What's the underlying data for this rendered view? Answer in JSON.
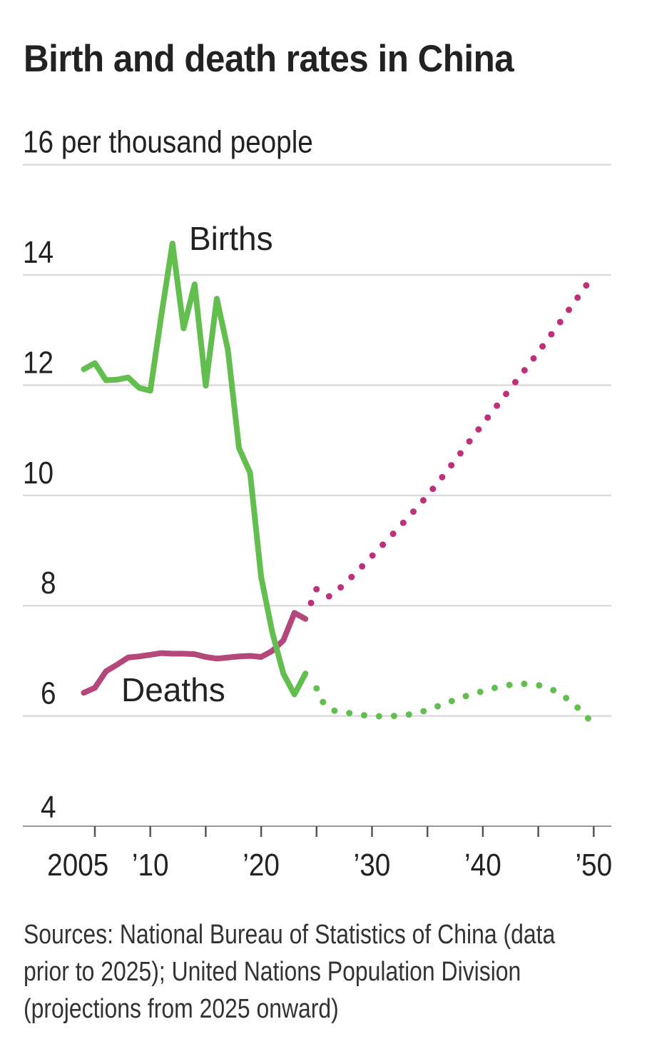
{
  "title": "Birth and death rates in China",
  "sources": "Sources: National Bureau of Statistics of China (data prior to 2025); United Nations Population Division (projections from 2025 onward)",
  "chart_data": {
    "type": "line",
    "title": "Birth and death rates in China",
    "ylabel": "per thousand people",
    "ylim": [
      4,
      16
    ],
    "xlim": [
      2004,
      2050
    ],
    "yticks": [
      4,
      6,
      8,
      10,
      12,
      14,
      16
    ],
    "ytick_labels": [
      "4",
      "6",
      "8",
      "10",
      "12",
      "14",
      "16 per thousand people"
    ],
    "xticks": [
      2005,
      2010,
      2015,
      2020,
      2025,
      2030,
      2035,
      2040,
      2045,
      2050
    ],
    "xtick_labels": [
      {
        "year": 2005,
        "label": "2005"
      },
      {
        "year": 2010,
        "label": "’10"
      },
      {
        "year": 2020,
        "label": "’20"
      },
      {
        "year": 2030,
        "label": "’30"
      },
      {
        "year": 2040,
        "label": "’40"
      },
      {
        "year": 2050,
        "label": "’50"
      }
    ],
    "grid": true,
    "series": [
      {
        "name": "Births",
        "color": "#62bf4f",
        "style": "solid",
        "x": [
          2004,
          2005,
          2006,
          2007,
          2008,
          2009,
          2010,
          2011,
          2012,
          2013,
          2014,
          2015,
          2016,
          2017,
          2018,
          2019,
          2020,
          2021,
          2022,
          2023,
          2024
        ],
        "y": [
          12.29,
          12.4,
          12.09,
          12.1,
          12.14,
          11.95,
          11.9,
          13.27,
          14.57,
          13.03,
          13.83,
          11.99,
          13.57,
          12.64,
          10.86,
          10.41,
          8.52,
          7.52,
          6.77,
          6.39,
          6.77
        ]
      },
      {
        "name": "Births projection",
        "color": "#62bf4f",
        "style": "dotted",
        "x": [
          2025,
          2026,
          2028,
          2030,
          2032,
          2034,
          2036,
          2038,
          2040,
          2042,
          2044,
          2046,
          2048,
          2050
        ],
        "y": [
          6.5,
          6.15,
          6.05,
          6.0,
          6.0,
          6.05,
          6.18,
          6.33,
          6.45,
          6.55,
          6.58,
          6.5,
          6.25,
          5.85
        ]
      },
      {
        "name": "Deaths",
        "color": "#b5487a",
        "style": "solid",
        "x": [
          2004,
          2005,
          2006,
          2007,
          2008,
          2009,
          2010,
          2011,
          2012,
          2013,
          2014,
          2015,
          2016,
          2017,
          2018,
          2019,
          2020,
          2021,
          2022,
          2023,
          2024
        ],
        "y": [
          6.42,
          6.51,
          6.81,
          6.93,
          7.06,
          7.08,
          7.11,
          7.14,
          7.13,
          7.13,
          7.12,
          7.07,
          7.04,
          7.06,
          7.08,
          7.09,
          7.07,
          7.18,
          7.37,
          7.87,
          7.76
        ]
      },
      {
        "name": "Deaths projection",
        "color": "#c0307a",
        "style": "dotted",
        "x": [
          2024.5,
          2025,
          2026,
          2027,
          2030,
          2035,
          2040,
          2045,
          2050
        ],
        "y": [
          8.05,
          8.3,
          8.17,
          8.3,
          8.9,
          10.0,
          11.3,
          12.6,
          14.0
        ]
      }
    ],
    "annotations": [
      {
        "text": "Births",
        "series": "Births"
      },
      {
        "text": "Deaths",
        "series": "Deaths"
      }
    ]
  }
}
